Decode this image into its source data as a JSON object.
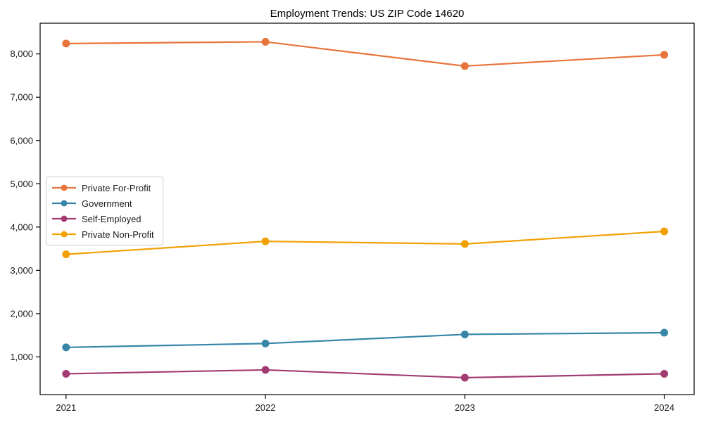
{
  "chart_data": {
    "type": "line",
    "title": "Employment Trends: US ZIP Code 14620",
    "xlabel": "",
    "ylabel": "",
    "x": [
      2021,
      2022,
      2023,
      2024
    ],
    "x_tick_labels": [
      "2021",
      "2022",
      "2023",
      "2024"
    ],
    "yticks": [
      1000,
      2000,
      3000,
      4000,
      5000,
      6000,
      7000,
      8000
    ],
    "ytick_labels": [
      "1,000",
      "2,000",
      "3,000",
      "4,000",
      "5,000",
      "6,000",
      "7,000",
      "8,000"
    ],
    "xlim": [
      2020.87,
      2024.15
    ],
    "ylim": [
      130,
      8710
    ],
    "grid": false,
    "legend_position": "center-left",
    "axis_color": "#000000",
    "series": [
      {
        "name": "Private For-Profit",
        "color": "#E8743B",
        "values": [
          8240,
          8280,
          7720,
          7980
        ]
      },
      {
        "name": "Government",
        "color": "#3786A8",
        "values": [
          1220,
          1310,
          1520,
          1560
        ]
      },
      {
        "name": "Self-Employed",
        "color": "#A23B72",
        "values": [
          610,
          700,
          520,
          610
        ]
      },
      {
        "name": "Private Non-Profit",
        "color": "#F2A104",
        "values": [
          3370,
          3670,
          3610,
          3900
        ]
      }
    ]
  }
}
